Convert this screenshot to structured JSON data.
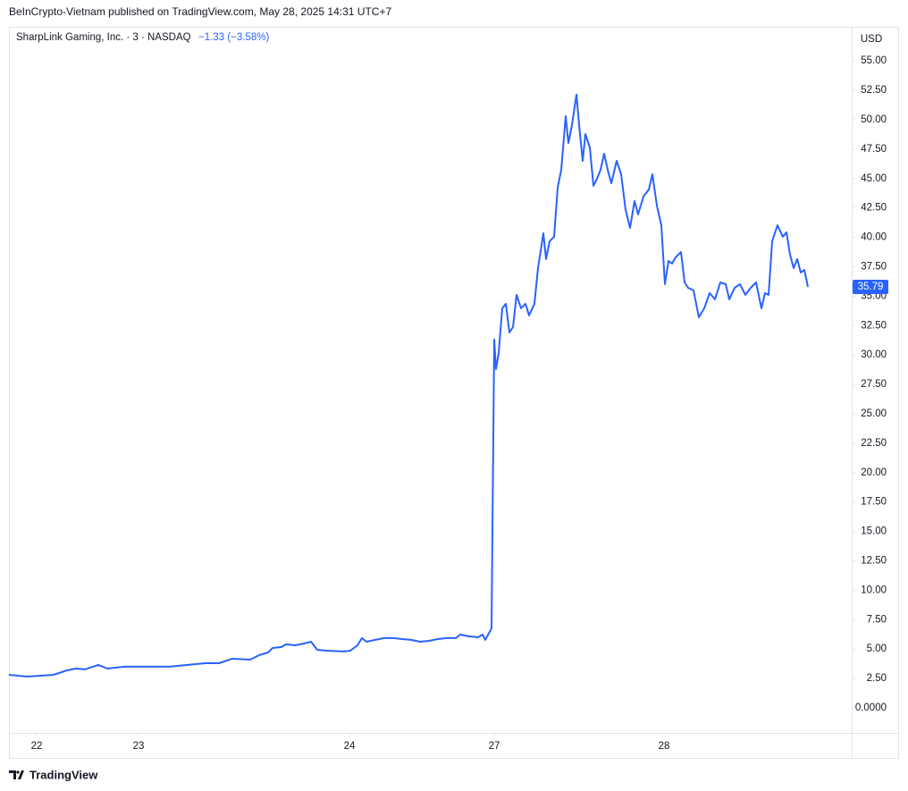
{
  "header": {
    "published": "BeInCrypto-Vietnam published on TradingView.com, May 28, 2025 14:31 UTC+7",
    "symbol": "SharpLink Gaming, Inc. · 3 · NASDAQ",
    "change": "−1.33 (−3.58%)"
  },
  "chart_data": {
    "type": "line",
    "currency": "USD",
    "color": "#2962ff",
    "x": [
      0,
      20,
      50,
      65,
      75,
      85,
      100,
      110,
      130,
      150,
      180,
      200,
      220,
      235,
      250,
      270,
      280,
      290,
      295,
      305,
      310,
      320,
      330,
      338,
      345,
      355,
      375,
      382,
      390,
      395,
      400,
      410,
      420,
      430,
      440,
      450,
      460,
      470,
      480,
      490,
      500,
      505,
      515,
      525,
      530,
      533,
      540,
      543,
      545,
      548,
      552,
      556,
      560,
      564,
      568,
      573,
      578,
      582,
      588,
      592,
      598,
      601,
      605,
      610,
      614,
      618,
      623,
      626,
      630,
      635,
      638,
      642,
      645,
      650,
      654,
      658,
      662,
      666,
      670,
      674,
      680,
      685,
      690,
      695,
      700,
      704,
      710,
      716,
      720,
      725,
      730,
      734,
      738,
      742,
      746,
      752,
      756,
      760,
      766,
      772,
      778,
      784,
      790,
      796,
      802,
      806,
      812,
      818,
      824,
      830,
      836,
      842,
      846,
      850,
      854,
      860,
      866,
      870,
      874,
      878,
      882,
      886,
      890,
      894
    ],
    "values": [
      2.81,
      2.66,
      2.81,
      3.19,
      3.34,
      3.27,
      3.65,
      3.34,
      3.5,
      3.5,
      3.5,
      3.65,
      3.8,
      3.8,
      4.18,
      4.1,
      4.48,
      4.71,
      5.09,
      5.17,
      5.4,
      5.32,
      5.47,
      5.62,
      4.94,
      4.86,
      4.79,
      4.86,
      5.32,
      5.93,
      5.62,
      5.78,
      5.93,
      5.93,
      5.85,
      5.78,
      5.62,
      5.7,
      5.85,
      5.93,
      5.93,
      6.23,
      6.08,
      6.0,
      6.23,
      5.78,
      6.76,
      31.31,
      28.8,
      30.17,
      33.97,
      34.35,
      31.91,
      32.37,
      35.11,
      33.97,
      34.35,
      33.36,
      34.35,
      37.39,
      40.35,
      38.15,
      39.67,
      40.05,
      44.22,
      45.74,
      50.3,
      48.02,
      49.54,
      52.13,
      49.54,
      46.5,
      48.78,
      47.64,
      44.38,
      44.98,
      45.74,
      47.11,
      45.74,
      44.6,
      46.5,
      45.36,
      42.33,
      40.81,
      43.09,
      41.95,
      43.47,
      44.07,
      45.36,
      42.7,
      41.03,
      36.02,
      37.99,
      37.77,
      38.3,
      38.75,
      36.17,
      35.71,
      35.49,
      33.21,
      33.97,
      35.26,
      34.73,
      36.17,
      36.02,
      34.73,
      35.71,
      36.02,
      35.11,
      35.71,
      36.17,
      33.97,
      35.26,
      35.11,
      39.67,
      41.03,
      40.05,
      40.43,
      38.53,
      37.39,
      38.15,
      37.01,
      37.23,
      35.79
    ],
    "last_value": 35.79,
    "xlim": [
      0,
      943
    ],
    "ylim": [
      -2.13,
      57.9
    ],
    "xticks": [
      {
        "value": 31,
        "label": "22"
      },
      {
        "value": 145,
        "label": "23"
      },
      {
        "value": 381,
        "label": "24"
      },
      {
        "value": 543,
        "label": "27"
      },
      {
        "value": 733,
        "label": "28"
      }
    ],
    "yticks": [
      {
        "value": 0,
        "label": "0.0000"
      },
      {
        "value": 2.5,
        "label": "2.50"
      },
      {
        "value": 5,
        "label": "5.00"
      },
      {
        "value": 7.5,
        "label": "7.50"
      },
      {
        "value": 10,
        "label": "10.00"
      },
      {
        "value": 12.5,
        "label": "12.50"
      },
      {
        "value": 15,
        "label": "15.00"
      },
      {
        "value": 17.5,
        "label": "17.50"
      },
      {
        "value": 20,
        "label": "20.00"
      },
      {
        "value": 22.5,
        "label": "22.50"
      },
      {
        "value": 25,
        "label": "25.00"
      },
      {
        "value": 27.5,
        "label": "27.50"
      },
      {
        "value": 30,
        "label": "30.00"
      },
      {
        "value": 32.5,
        "label": "32.50"
      },
      {
        "value": 35,
        "label": "35.00"
      },
      {
        "value": 37.5,
        "label": "37.50"
      },
      {
        "value": 40,
        "label": "40.00"
      },
      {
        "value": 42.5,
        "label": "42.50"
      },
      {
        "value": 45,
        "label": "45.00"
      },
      {
        "value": 47.5,
        "label": "47.50"
      },
      {
        "value": 50,
        "label": "50.00"
      },
      {
        "value": 52.5,
        "label": "52.50"
      },
      {
        "value": 55,
        "label": "55.00"
      }
    ]
  },
  "footer": {
    "brand": "TradingView"
  }
}
